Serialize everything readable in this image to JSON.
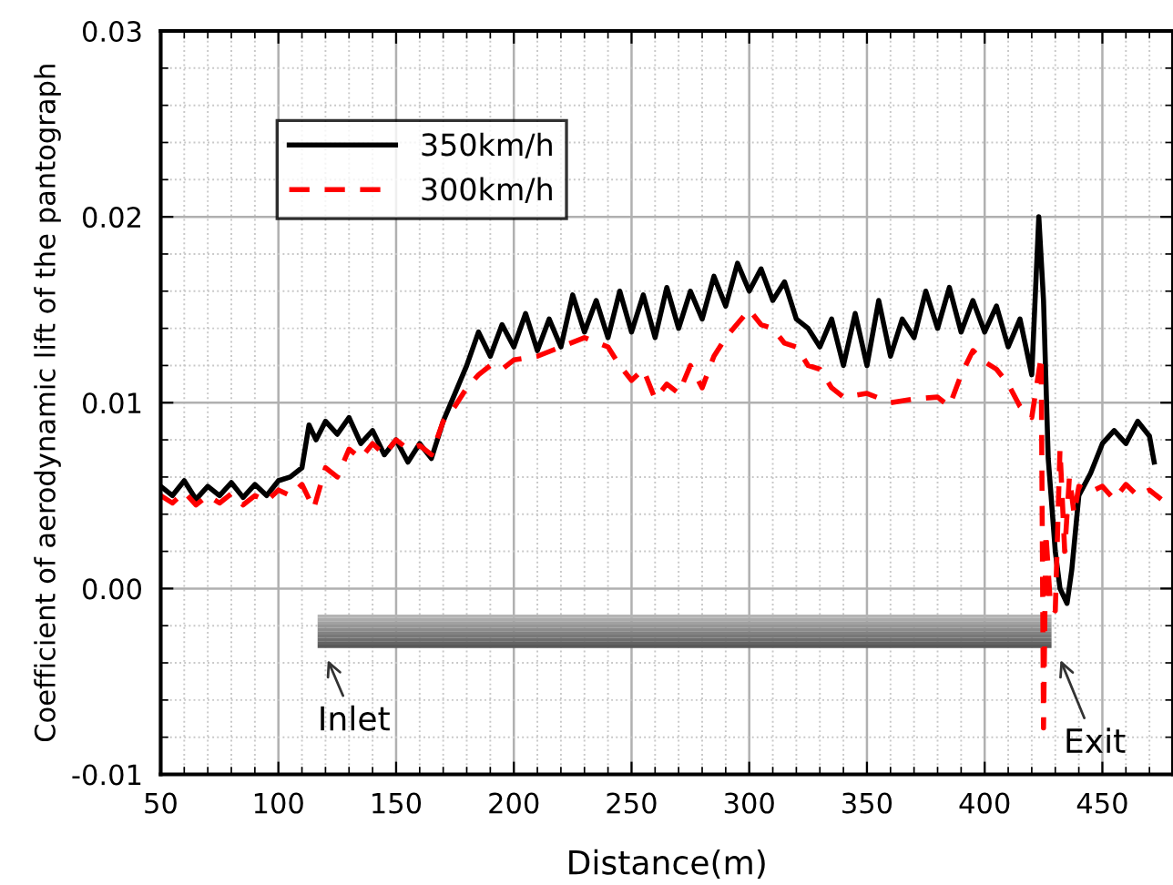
{
  "chart_data": {
    "type": "line",
    "xlabel": "Distance(m)",
    "ylabel": "Coefficient of aerodynamic lift of the pantograph",
    "xlim": [
      50,
      480
    ],
    "xticks": [
      50,
      100,
      150,
      200,
      250,
      300,
      350,
      400,
      450
    ],
    "ylim": [
      -0.01,
      0.03
    ],
    "yticks": [
      {
        "value": -0.01,
        "label": "-0.01"
      },
      {
        "value": 0.0,
        "label": "0.00"
      },
      {
        "value": 0.01,
        "label": "0.01"
      },
      {
        "value": 0.02,
        "label": "0.02"
      },
      {
        "value": 0.03,
        "label": "0.03"
      }
    ],
    "grid": true,
    "legend": "top left",
    "marker": "none",
    "series": [
      {
        "name": "350km/h",
        "color": "#000000",
        "line_style": "solid",
        "x": [
          50,
          55,
          60,
          65,
          70,
          75,
          80,
          85,
          90,
          95,
          100,
          105,
          110,
          113,
          116,
          120,
          125,
          130,
          135,
          140,
          145,
          150,
          155,
          160,
          165,
          170,
          175,
          180,
          185,
          190,
          195,
          200,
          205,
          210,
          215,
          220,
          225,
          230,
          235,
          240,
          245,
          250,
          255,
          260,
          265,
          270,
          275,
          280,
          285,
          290,
          295,
          300,
          305,
          310,
          315,
          320,
          325,
          330,
          335,
          340,
          345,
          350,
          355,
          360,
          365,
          370,
          375,
          380,
          385,
          390,
          395,
          400,
          405,
          410,
          415,
          420,
          423,
          425,
          427,
          430,
          432,
          435,
          437,
          440,
          445,
          450,
          455,
          460,
          465,
          470,
          472
        ],
        "values": [
          0.0055,
          0.005,
          0.0058,
          0.0048,
          0.0055,
          0.005,
          0.0057,
          0.0049,
          0.0056,
          0.005,
          0.0058,
          0.006,
          0.0065,
          0.0088,
          0.008,
          0.009,
          0.0083,
          0.0092,
          0.0078,
          0.0085,
          0.0072,
          0.008,
          0.0068,
          0.0078,
          0.007,
          0.009,
          0.0105,
          0.012,
          0.0138,
          0.0125,
          0.0142,
          0.013,
          0.0148,
          0.0128,
          0.0145,
          0.013,
          0.0158,
          0.0138,
          0.0155,
          0.0135,
          0.016,
          0.0138,
          0.0158,
          0.0135,
          0.0162,
          0.014,
          0.016,
          0.0145,
          0.0168,
          0.0152,
          0.0175,
          0.016,
          0.0172,
          0.0155,
          0.0165,
          0.0145,
          0.014,
          0.013,
          0.0145,
          0.012,
          0.0148,
          0.012,
          0.0155,
          0.0125,
          0.0145,
          0.0135,
          0.016,
          0.014,
          0.0162,
          0.0138,
          0.0155,
          0.0138,
          0.0152,
          0.013,
          0.0145,
          0.0115,
          0.02,
          0.0155,
          0.007,
          0.002,
          0.0,
          -0.0008,
          0.001,
          0.005,
          0.0062,
          0.0078,
          0.0085,
          0.0078,
          0.009,
          0.0082,
          0.0068
        ]
      },
      {
        "name": "300km/h",
        "color": "#ff0000",
        "line_style": "dashed",
        "x": [
          50,
          55,
          60,
          65,
          70,
          75,
          80,
          85,
          90,
          95,
          100,
          105,
          110,
          115,
          120,
          125,
          130,
          135,
          140,
          145,
          150,
          155,
          160,
          165,
          170,
          175,
          180,
          185,
          190,
          195,
          200,
          210,
          220,
          230,
          240,
          245,
          250,
          255,
          260,
          265,
          270,
          275,
          280,
          285,
          290,
          300,
          305,
          310,
          315,
          320,
          325,
          330,
          335,
          340,
          350,
          360,
          370,
          380,
          385,
          390,
          395,
          400,
          405,
          410,
          415,
          420,
          424,
          425,
          426,
          428,
          430,
          432,
          434,
          436,
          438,
          440,
          445,
          450,
          455,
          460,
          465,
          470,
          475
        ],
        "values": [
          0.005,
          0.0046,
          0.0052,
          0.0045,
          0.005,
          0.0046,
          0.0051,
          0.0045,
          0.005,
          0.0047,
          0.0053,
          0.005,
          0.0056,
          0.0043,
          0.0065,
          0.006,
          0.0075,
          0.007,
          0.0078,
          0.0072,
          0.008,
          0.0075,
          0.0077,
          0.0072,
          0.009,
          0.0098,
          0.0108,
          0.0115,
          0.012,
          0.0118,
          0.0123,
          0.0125,
          0.013,
          0.0135,
          0.013,
          0.012,
          0.0112,
          0.0118,
          0.0102,
          0.011,
          0.0105,
          0.012,
          0.0108,
          0.0125,
          0.0135,
          0.015,
          0.0142,
          0.014,
          0.0132,
          0.013,
          0.012,
          0.0118,
          0.0108,
          0.0103,
          0.0105,
          0.01,
          0.0102,
          0.0103,
          0.0098,
          0.0115,
          0.0128,
          0.0122,
          0.0118,
          0.011,
          0.0098,
          0.0092,
          0.0125,
          -0.0075,
          0.003,
          -0.001,
          -0.0012,
          0.0075,
          0.002,
          0.006,
          0.004,
          0.0055,
          0.0052,
          0.0055,
          0.0048,
          0.0056,
          0.005,
          0.0053,
          0.0048
        ]
      }
    ],
    "annotations": [
      "Inlet",
      "Exit"
    ]
  }
}
